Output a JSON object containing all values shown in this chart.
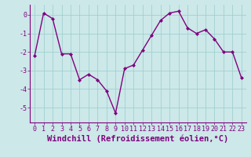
{
  "x": [
    0,
    1,
    2,
    3,
    4,
    5,
    6,
    7,
    8,
    9,
    10,
    11,
    12,
    13,
    14,
    15,
    16,
    17,
    18,
    19,
    20,
    21,
    22,
    23
  ],
  "y": [
    -2.2,
    0.1,
    -0.2,
    -2.1,
    -2.1,
    -3.5,
    -3.2,
    -3.5,
    -4.1,
    -5.3,
    -2.9,
    -2.7,
    -1.9,
    -1.1,
    -0.3,
    0.1,
    0.2,
    -0.7,
    -1.0,
    -0.8,
    -1.3,
    -2.0,
    -2.0,
    -3.4
  ],
  "line_color": "#800080",
  "marker": "D",
  "marker_size": 2.0,
  "line_width": 1.0,
  "xlabel": "Windchill (Refroidissement éolien,°C)",
  "xlim": [
    -0.5,
    23.5
  ],
  "ylim": [
    -5.8,
    0.55
  ],
  "yticks": [
    0,
    -1,
    -2,
    -3,
    -4,
    -5
  ],
  "xticks": [
    0,
    1,
    2,
    3,
    4,
    5,
    6,
    7,
    8,
    9,
    10,
    11,
    12,
    13,
    14,
    15,
    16,
    17,
    18,
    19,
    20,
    21,
    22,
    23
  ],
  "background_color": "#cce8e8",
  "grid_color": "#99cccc",
  "spine_color": "#800080",
  "tick_label_size": 6.0,
  "xlabel_size": 7.5
}
